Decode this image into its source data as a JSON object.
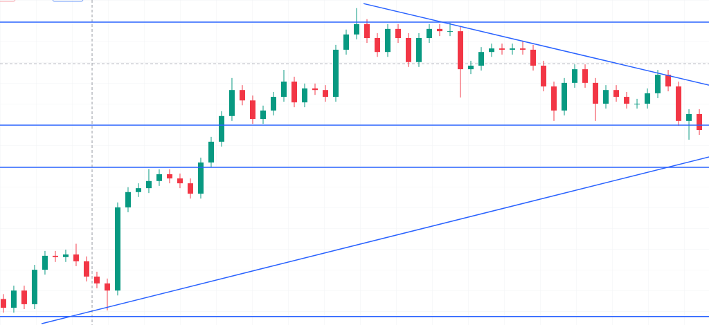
{
  "chart_data": {
    "type": "candlestick",
    "xlim": [
      -0.33,
      67.93
    ],
    "ylim": [
      0,
      100
    ],
    "up_color": "#089981",
    "down_color": "#f23645",
    "line_color": "#2962ff",
    "open": [
      8.0,
      5.3,
      10.6,
      6.4,
      17.0,
      21.3,
      20.9,
      21.7,
      19.6,
      14.9,
      12.8,
      10.6,
      36.2,
      40.9,
      42.1,
      44.3,
      46.4,
      45.1,
      43.6,
      40.4,
      50.0,
      56.4,
      64.3,
      72.3,
      69.1,
      63.4,
      66.0,
      70.2,
      74.9,
      68.5,
      72.8,
      72.3,
      70.2,
      84.7,
      89.4,
      92.6,
      88.3,
      84.0,
      91.1,
      88.3,
      80.9,
      88.3,
      91.1,
      90.4,
      90.4,
      78.7,
      79.8,
      84.0,
      85.1,
      84.7,
      85.1,
      84.7,
      79.8,
      73.4,
      66.0,
      74.5,
      78.7,
      74.5,
      68.1,
      72.3,
      70.2,
      68.1,
      68.1,
      71.3,
      77.0,
      73.4,
      62.8,
      64.9
    ],
    "high": [
      9.5,
      12.1,
      12.1,
      18.5,
      22.8,
      22.8,
      23.2,
      25.0,
      21.1,
      16.4,
      14.3,
      37.7,
      42.4,
      43.6,
      48.0,
      47.9,
      47.9,
      46.6,
      45.1,
      51.5,
      57.9,
      65.8,
      76.0,
      73.8,
      70.6,
      67.5,
      71.7,
      78.5,
      76.4,
      74.3,
      74.3,
      73.8,
      86.2,
      90.9,
      97.5,
      94.1,
      89.8,
      92.6,
      92.6,
      89.8,
      89.8,
      92.6,
      92.6,
      93.0,
      91.9,
      81.3,
      85.5,
      86.6,
      86.6,
      86.6,
      87.5,
      86.2,
      81.3,
      74.9,
      76.0,
      80.2,
      80.2,
      76.0,
      73.8,
      73.8,
      71.7,
      69.6,
      72.8,
      78.5,
      78.5,
      74.9,
      66.4,
      66.4
    ],
    "low": [
      3.8,
      3.8,
      4.9,
      4.9,
      15.5,
      19.4,
      19.4,
      18.1,
      13.4,
      11.3,
      4.5,
      9.1,
      34.7,
      39.4,
      40.6,
      42.8,
      43.6,
      42.1,
      38.9,
      38.9,
      48.5,
      54.9,
      62.8,
      67.6,
      61.9,
      61.9,
      64.5,
      68.7,
      67.0,
      67.0,
      70.8,
      68.7,
      68.7,
      83.2,
      87.9,
      86.8,
      82.5,
      82.5,
      86.8,
      79.4,
      79.4,
      86.8,
      88.9,
      88.9,
      70.0,
      77.2,
      78.3,
      82.5,
      83.2,
      83.2,
      83.2,
      78.3,
      71.9,
      62.8,
      64.5,
      73.0,
      73.0,
      62.8,
      66.6,
      68.7,
      66.6,
      66.6,
      66.6,
      69.8,
      71.9,
      61.3,
      57.0,
      58.5
    ],
    "close": [
      5.3,
      10.6,
      6.4,
      17.0,
      21.3,
      20.9,
      21.7,
      19.6,
      14.9,
      12.8,
      10.6,
      36.2,
      40.9,
      42.1,
      44.3,
      46.4,
      45.1,
      43.6,
      40.4,
      50.0,
      56.4,
      64.3,
      72.3,
      69.1,
      63.4,
      66.0,
      70.2,
      74.9,
      68.5,
      72.8,
      72.3,
      70.2,
      84.7,
      89.4,
      92.6,
      88.3,
      84.0,
      91.1,
      88.3,
      80.9,
      88.3,
      91.1,
      90.4,
      90.4,
      78.7,
      79.8,
      84.0,
      85.1,
      84.7,
      85.1,
      84.7,
      79.8,
      73.4,
      66.0,
      74.5,
      78.7,
      74.5,
      68.1,
      72.3,
      70.2,
      68.1,
      68.1,
      71.3,
      77.0,
      73.4,
      62.8,
      64.9,
      60.0
    ],
    "hlines": [
      93.2,
      61.5,
      48.5,
      2.6
    ],
    "dashed_hline": 80.4,
    "trendlines": [
      {
        "x": [
          34.67,
          67.93
        ],
        "values": [
          98.9,
          73.8
        ]
      },
      {
        "x": [
          3.67,
          67.93
        ],
        "values": [
          0.4,
          51.7
        ]
      }
    ]
  }
}
